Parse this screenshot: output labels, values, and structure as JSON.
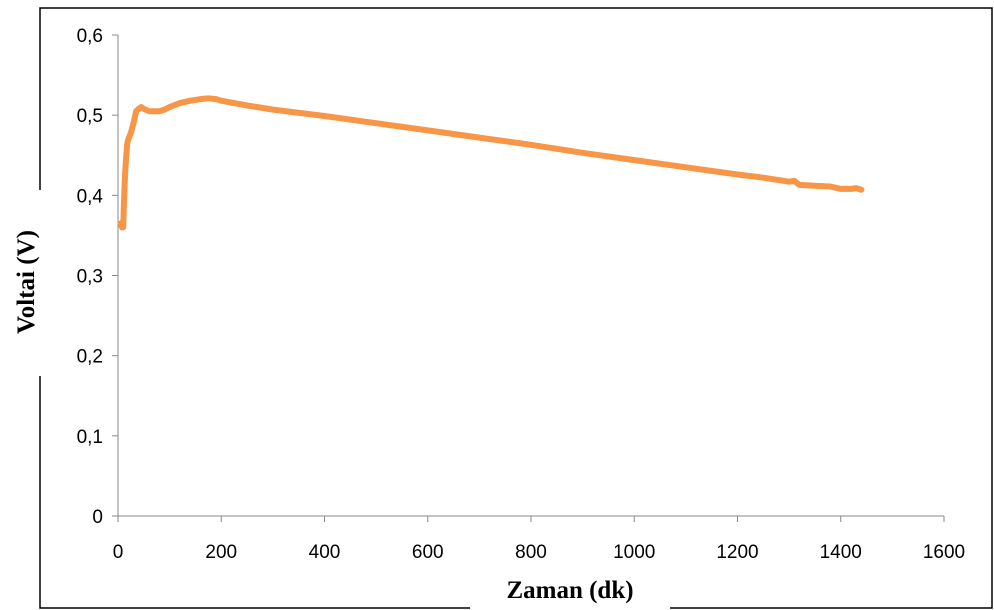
{
  "chart_data": {
    "type": "line",
    "title": "",
    "xlabel": "Zaman (dk)",
    "ylabel": "Voltai  (V)",
    "xlim": [
      0,
      1600
    ],
    "ylim": [
      0,
      0.6
    ],
    "x_ticks": [
      0,
      200,
      400,
      600,
      800,
      1000,
      1200,
      1400,
      1600
    ],
    "x_tick_labels": [
      "0",
      "200",
      "400",
      "600",
      "800",
      "1000",
      "1200",
      "1400",
      "1600"
    ],
    "y_ticks": [
      0,
      0.1,
      0.2,
      0.3,
      0.4,
      0.5,
      0.6
    ],
    "y_tick_labels": [
      "0",
      "0,1",
      "0,2",
      "0,3",
      "0,4",
      "0,5",
      "0,6"
    ],
    "grid": false,
    "legend": "none",
    "series": [
      {
        "color": "#f79646",
        "x": [
          5,
          8,
          10,
          12,
          14,
          16,
          18,
          20,
          25,
          30,
          35,
          40,
          45,
          50,
          60,
          70,
          80,
          90,
          100,
          120,
          140,
          160,
          175,
          190,
          200,
          250,
          300,
          400,
          500,
          600,
          700,
          800,
          900,
          1000,
          1100,
          1200,
          1250,
          1300,
          1310,
          1320,
          1350,
          1380,
          1400,
          1420,
          1430,
          1440
        ],
        "y": [
          0.365,
          0.36,
          0.36,
          0.4,
          0.43,
          0.45,
          0.465,
          0.47,
          0.478,
          0.49,
          0.505,
          0.508,
          0.51,
          0.508,
          0.505,
          0.505,
          0.505,
          0.507,
          0.51,
          0.515,
          0.518,
          0.52,
          0.521,
          0.52,
          0.518,
          0.512,
          0.507,
          0.499,
          0.49,
          0.481,
          0.472,
          0.463,
          0.453,
          0.444,
          0.435,
          0.426,
          0.422,
          0.417,
          0.418,
          0.413,
          0.412,
          0.411,
          0.408,
          0.408,
          0.409,
          0.407
        ]
      }
    ]
  }
}
